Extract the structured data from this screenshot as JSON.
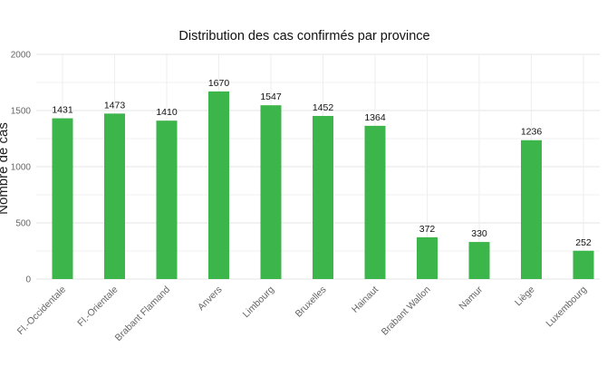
{
  "chart_data": {
    "type": "bar",
    "title": "Distribution des cas confirmés par province",
    "xlabel": "",
    "ylabel": "Nombre de cas",
    "categories": [
      "Fl.-Occidentale",
      "Fl.-Orientale",
      "Brabant Flamand",
      "Anvers",
      "Limbourg",
      "Bruxelles",
      "Hainaut",
      "Brabant Wallon",
      "Namur",
      "Liège",
      "Luxembourg"
    ],
    "values": [
      1431,
      1473,
      1410,
      1670,
      1547,
      1452,
      1364,
      372,
      330,
      1236,
      252
    ],
    "ylim": [
      0,
      2000
    ],
    "yticks": [
      0,
      500,
      1000,
      1500,
      2000
    ],
    "bar_color": "#3cb54a",
    "grid": true,
    "data_labels": true
  }
}
